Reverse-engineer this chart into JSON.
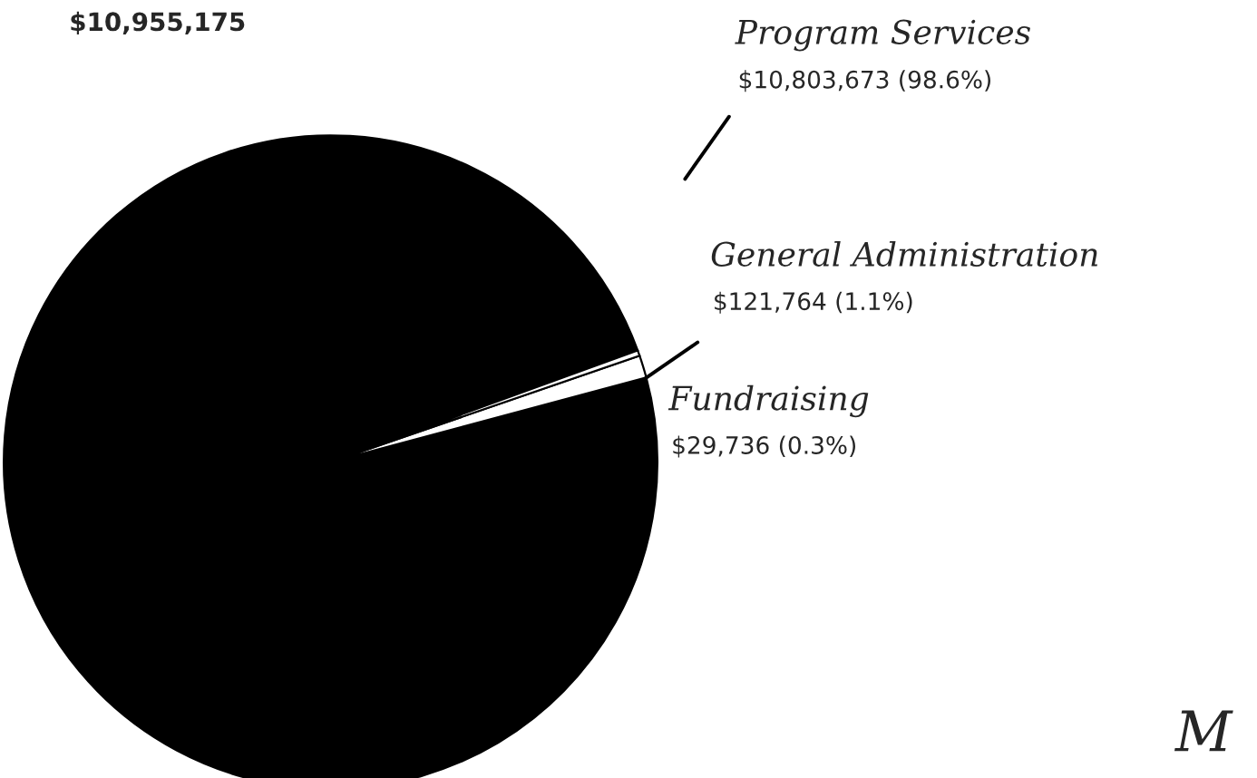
{
  "chart_data": {
    "type": "pie",
    "title": "$10,955,175",
    "categories": [
      "Program Services",
      "General Administration",
      "Fundraising"
    ],
    "values": [
      10803673,
      121764,
      29736
    ],
    "value_labels": [
      "$10,803,673 (98.6%)",
      "$121,764 (1.1%)",
      "$29,736 (0.3%)"
    ],
    "colors": [
      "#000000",
      "#ffffff",
      "#ffffff"
    ],
    "annotations": [
      "M"
    ]
  }
}
